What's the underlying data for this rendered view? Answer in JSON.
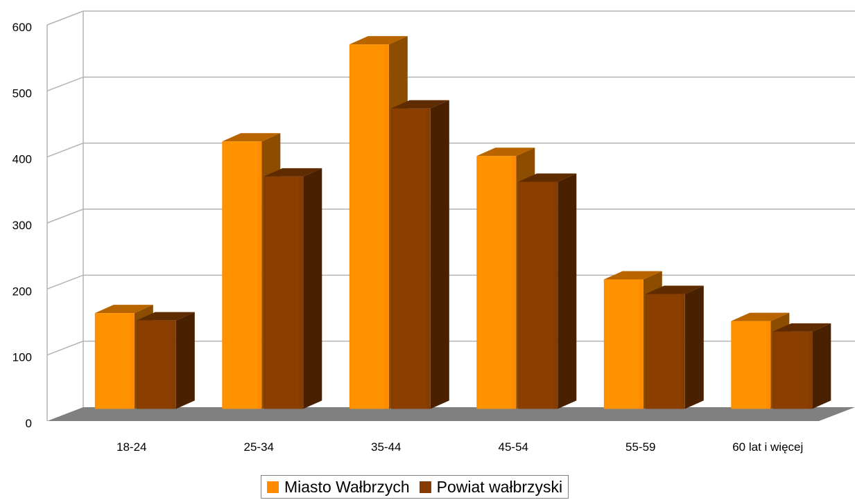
{
  "chart_data": {
    "type": "bar",
    "title": "",
    "xlabel": "",
    "ylabel": "",
    "categories": [
      "18-24",
      "25-34",
      "35-44",
      "45-54",
      "55-59",
      "60 lat i więcej"
    ],
    "series": [
      {
        "name": "Miasto Wałbrzych",
        "values": [
          145,
          405,
          552,
          383,
          196,
          133
        ],
        "color": "#ff8c00"
      },
      {
        "name": "Powiat wałbrzyski",
        "values": [
          134,
          352,
          455,
          344,
          174,
          117
        ],
        "color": "#843c00"
      }
    ],
    "ylim": [
      0,
      600
    ],
    "yticks": [
      "0",
      "100",
      "200",
      "300",
      "400",
      "500",
      "600"
    ],
    "grid": true,
    "legend": "bottom",
    "style": "3d-column"
  }
}
